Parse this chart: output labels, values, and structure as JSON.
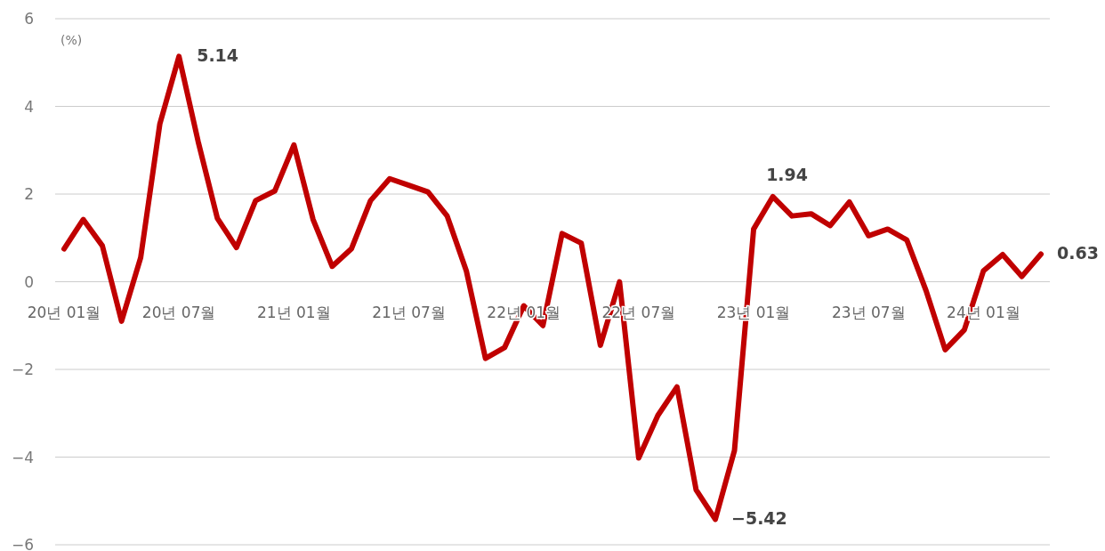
{
  "chart_data": {
    "type": "line",
    "ylabel": "(%)",
    "categories": [
      "20년 01월",
      null,
      null,
      null,
      null,
      null,
      "20년 07월",
      null,
      null,
      null,
      null,
      null,
      "21년 01월",
      null,
      null,
      null,
      null,
      null,
      "21년 07월",
      null,
      null,
      null,
      null,
      null,
      "22년 01월",
      null,
      null,
      null,
      null,
      null,
      "22년 07월",
      null,
      null,
      null,
      null,
      null,
      "23년 01월",
      null,
      null,
      null,
      null,
      null,
      "23년 07월",
      null,
      null,
      null,
      null,
      null,
      "24년 01월",
      null,
      null,
      null
    ],
    "series": [
      {
        "color": "#c00000",
        "values": [
          0.75,
          1.42,
          0.82,
          -0.9,
          0.55,
          3.6,
          5.14,
          3.2,
          1.45,
          0.78,
          1.85,
          2.07,
          3.12,
          1.42,
          0.35,
          0.75,
          1.85,
          2.35,
          2.2,
          2.05,
          1.5,
          0.25,
          -1.75,
          -1.5,
          -0.55,
          -1.0,
          1.1,
          0.88,
          -1.45,
          0.0,
          -4.02,
          -3.05,
          -2.4,
          -4.75,
          -5.42,
          -3.85,
          1.2,
          1.94,
          1.5,
          1.55,
          1.28,
          1.82,
          1.05,
          1.2,
          0.95,
          -0.2,
          -1.55,
          -1.1,
          0.25,
          0.62,
          0.12,
          0.63
        ],
        "value_labels": [
          null,
          null,
          null,
          null,
          null,
          null,
          "5.14",
          null,
          null,
          null,
          null,
          null,
          null,
          null,
          null,
          null,
          null,
          null,
          null,
          null,
          null,
          null,
          null,
          null,
          null,
          null,
          null,
          null,
          null,
          null,
          null,
          null,
          null,
          null,
          "−5.42",
          null,
          null,
          "1.94",
          null,
          null,
          null,
          null,
          null,
          null,
          null,
          null,
          null,
          null,
          null,
          null,
          null,
          "0.63"
        ]
      }
    ],
    "ylim": [
      -6,
      6
    ],
    "yticks": [
      {
        "value": -6,
        "label": "−6"
      },
      {
        "value": -4,
        "label": "−4"
      },
      {
        "value": -2,
        "label": "−2"
      },
      0,
      2,
      4,
      6
    ],
    "grid": "y",
    "marker": "none",
    "line_style": "solid"
  }
}
